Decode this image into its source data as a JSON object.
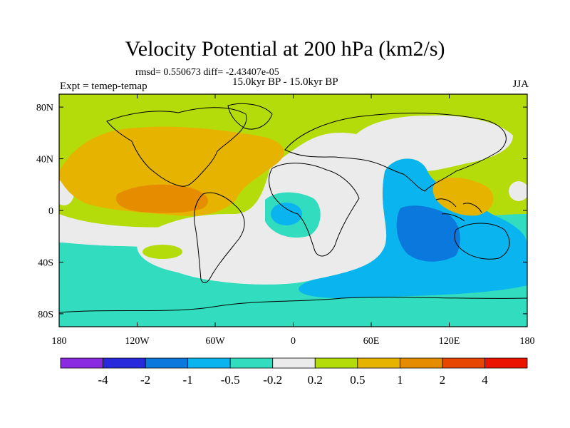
{
  "title": "Velocity Potential at 200 hPa (km2/s)",
  "stats": "rmsd= 0.550673 diff= -2.43407e-05",
  "period": "15.0kyr BP - 15.0kyr BP",
  "experiment": "Expt = temep-temap",
  "season": "JJA",
  "x_ticks": [
    {
      "label": "180",
      "lon": -180
    },
    {
      "label": "120W",
      "lon": -120
    },
    {
      "label": "60W",
      "lon": -60
    },
    {
      "label": "0",
      "lon": 0
    },
    {
      "label": "60E",
      "lon": 60
    },
    {
      "label": "120E",
      "lon": 120
    },
    {
      "label": "180",
      "lon": 180
    }
  ],
  "y_ticks": [
    {
      "label": "80N",
      "lat": 80
    },
    {
      "label": "40N",
      "lat": 40
    },
    {
      "label": "0",
      "lat": 0
    },
    {
      "label": "40S",
      "lat": -40
    },
    {
      "label": "80S",
      "lat": -80
    }
  ],
  "colorbar": {
    "colors": [
      "#8a2be2",
      "#2828dc",
      "#0a78dc",
      "#0ab4ee",
      "#32dcbe",
      "#ebebeb",
      "#b4dc0a",
      "#e6b400",
      "#e68c00",
      "#e64600",
      "#eb1400"
    ],
    "labels": [
      "-4",
      "-2",
      "-1",
      "-0.5",
      "-0.2",
      "0.2",
      "0.5",
      "1",
      "2",
      "4"
    ]
  },
  "legend": {
    "values": [
      "-4",
      "-2",
      "-1",
      "-0.5",
      "-0.2",
      "0.2",
      "0.5",
      "1",
      "2",
      "4"
    ]
  }
}
